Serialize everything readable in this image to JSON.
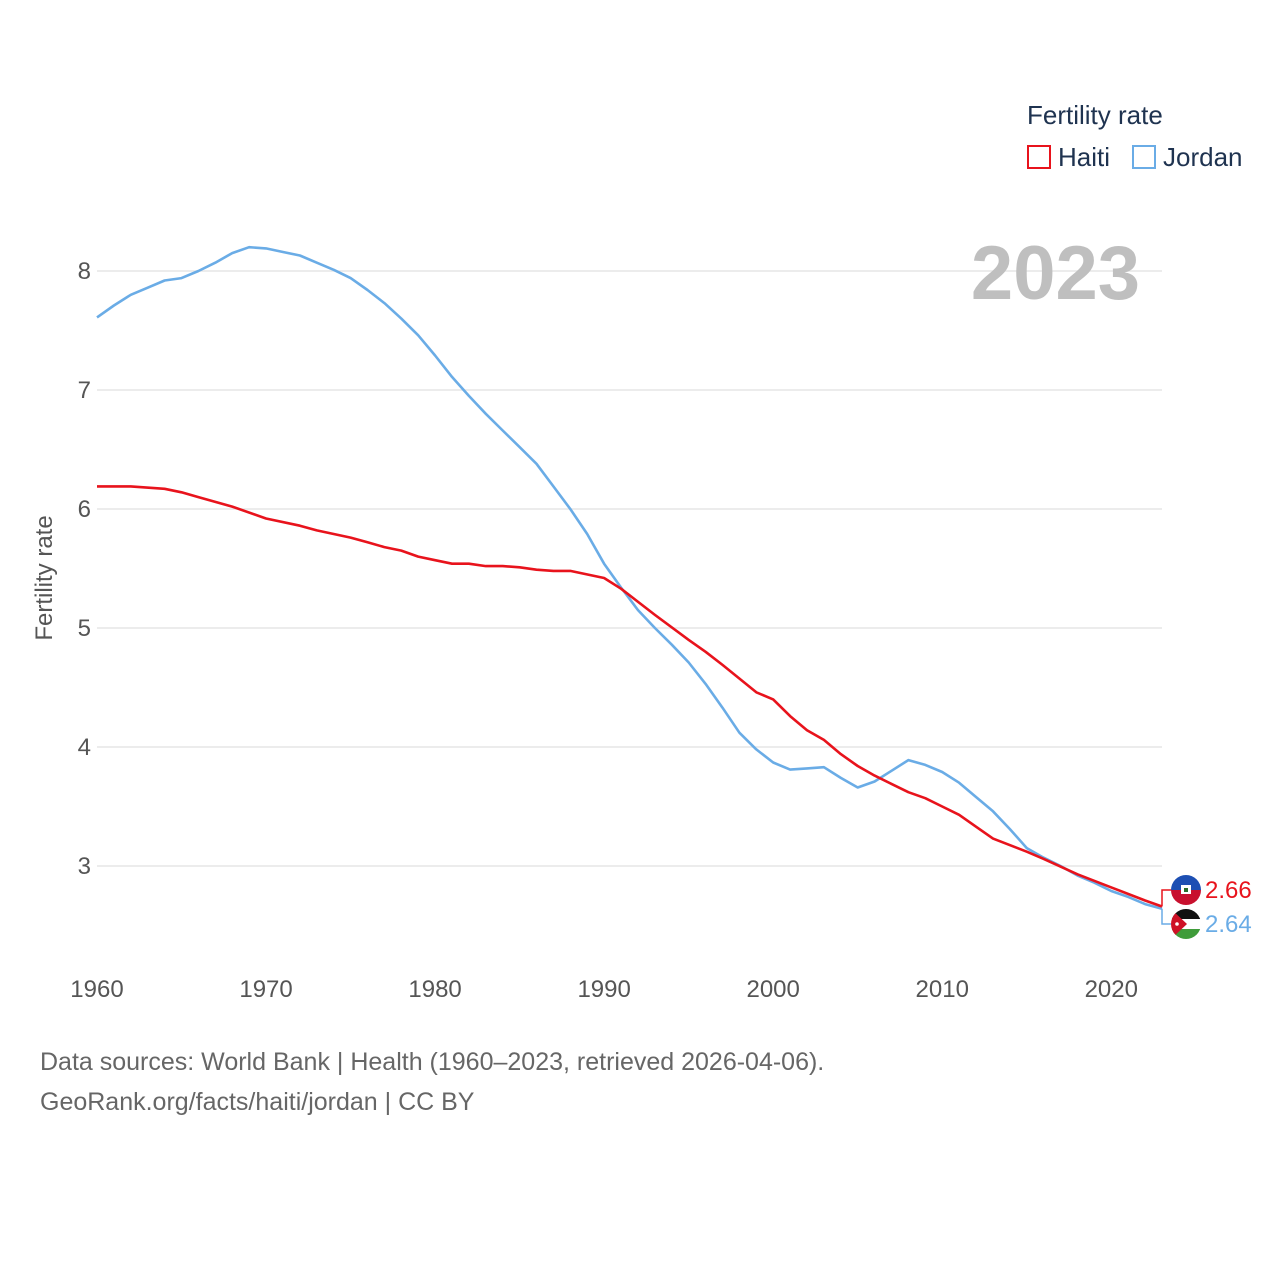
{
  "chart_data": {
    "type": "line",
    "title": "Fertility rate",
    "ylabel": "Fertility rate",
    "xlabel": "",
    "xlim": [
      1960,
      2023
    ],
    "ylim": [
      2.4,
      8.55
    ],
    "y_ticks": [
      3,
      4,
      5,
      6,
      7,
      8
    ],
    "x_ticks": [
      1960,
      1970,
      1980,
      1990,
      2000,
      2010,
      2020
    ],
    "year_label": "2023",
    "grid": true,
    "legend_position": "top-right",
    "series": [
      {
        "name": "Haiti",
        "color": "#e8131c",
        "end_label": "2.66",
        "flag": "haiti-flag",
        "x": [
          1960,
          1962,
          1964,
          1965,
          1966,
          1968,
          1970,
          1972,
          1973,
          1975,
          1976,
          1977,
          1978,
          1979,
          1980,
          1981,
          1982,
          1983,
          1984,
          1985,
          1986,
          1987,
          1988,
          1990,
          1991,
          1993,
          1995,
          1996,
          1997,
          1999,
          2000,
          2001,
          2002,
          2003,
          2004,
          2005,
          2006,
          2007,
          2008,
          2009,
          2010,
          2011,
          2012,
          2013,
          2015,
          2016,
          2018,
          2020,
          2022,
          2023
        ],
        "y": [
          6.19,
          6.19,
          6.17,
          6.14,
          6.1,
          6.02,
          5.92,
          5.86,
          5.82,
          5.76,
          5.72,
          5.68,
          5.65,
          5.6,
          5.57,
          5.54,
          5.54,
          5.52,
          5.52,
          5.51,
          5.49,
          5.48,
          5.48,
          5.42,
          5.33,
          5.11,
          4.9,
          4.8,
          4.69,
          4.46,
          4.4,
          4.26,
          4.14,
          4.06,
          3.94,
          3.84,
          3.76,
          3.69,
          3.62,
          3.57,
          3.5,
          3.43,
          3.33,
          3.23,
          3.12,
          3.06,
          2.93,
          2.82,
          2.71,
          2.66
        ]
      },
      {
        "name": "Jordan",
        "color": "#6aace6",
        "end_label": "2.64",
        "flag": "jordan-flag",
        "x": [
          1960,
          1961,
          1962,
          1963,
          1964,
          1965,
          1966,
          1967,
          1968,
          1969,
          1970,
          1971,
          1972,
          1973,
          1974,
          1975,
          1976,
          1977,
          1978,
          1979,
          1980,
          1981,
          1982,
          1983,
          1984,
          1985,
          1986,
          1987,
          1988,
          1989,
          1990,
          1991,
          1992,
          1993,
          1994,
          1995,
          1996,
          1997,
          1998,
          1999,
          2000,
          2001,
          2002,
          2003,
          2004,
          2005,
          2006,
          2007,
          2008,
          2009,
          2010,
          2011,
          2012,
          2013,
          2014,
          2015,
          2016,
          2017,
          2018,
          2019,
          2020,
          2021,
          2022,
          2023
        ],
        "y": [
          7.61,
          7.71,
          7.8,
          7.86,
          7.92,
          7.94,
          8.0,
          8.07,
          8.15,
          8.2,
          8.19,
          8.16,
          8.13,
          8.07,
          8.01,
          7.94,
          7.84,
          7.73,
          7.6,
          7.46,
          7.29,
          7.11,
          6.95,
          6.8,
          6.66,
          6.52,
          6.38,
          6.19,
          6.0,
          5.79,
          5.54,
          5.34,
          5.15,
          5.0,
          4.86,
          4.71,
          4.53,
          4.33,
          4.12,
          3.98,
          3.87,
          3.81,
          3.82,
          3.83,
          3.74,
          3.66,
          3.71,
          3.8,
          3.89,
          3.85,
          3.79,
          3.7,
          3.58,
          3.46,
          3.31,
          3.15,
          3.07,
          3.0,
          2.92,
          2.86,
          2.79,
          2.74,
          2.68,
          2.64
        ]
      }
    ]
  },
  "source": {
    "line1": "Data sources: World Bank | Health (1960–2023, retrieved 2026-04-06).",
    "line2": "GeoRank.org/facts/haiti/jordan | CC BY"
  }
}
